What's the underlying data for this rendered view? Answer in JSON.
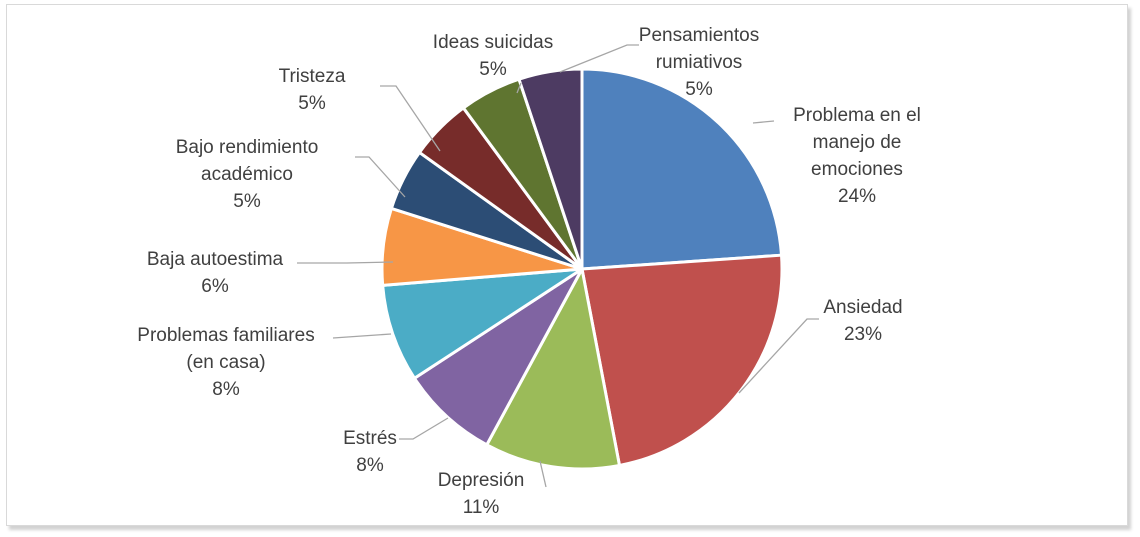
{
  "chart_data": {
    "type": "pie",
    "title": "",
    "start_angle_deg": 0,
    "direction": "clockwise",
    "legend": "none",
    "slices": [
      {
        "label_lines": [
          "Problema en el",
          "manejo de",
          "emociones"
        ],
        "percent_label": "24%",
        "value": 23.9,
        "color": "#4f81bd"
      },
      {
        "label_lines": [
          "Ansiedad"
        ],
        "percent_label": "23%",
        "value": 23.1,
        "color": "#c0504d"
      },
      {
        "label_lines": [
          "Depresión"
        ],
        "percent_label": "11%",
        "value": 10.9,
        "color": "#9bbb59"
      },
      {
        "label_lines": [
          "Estrés"
        ],
        "percent_label": "8%",
        "value": 7.9,
        "color": "#8064a2"
      },
      {
        "label_lines": [
          "Problemas familiares",
          "(en casa)"
        ],
        "percent_label": "8%",
        "value": 7.9,
        "color": "#4bacc6"
      },
      {
        "label_lines": [
          "Baja autoestima"
        ],
        "percent_label": "6%",
        "value": 6.2,
        "color": "#f79646"
      },
      {
        "label_lines": [
          "Bajo rendimiento",
          "académico"
        ],
        "percent_label": "5%",
        "value": 5.0,
        "color": "#2c4d75"
      },
      {
        "label_lines": [
          "Tristeza"
        ],
        "percent_label": "5%",
        "value": 5.0,
        "color": "#772c2a"
      },
      {
        "label_lines": [
          "Ideas suicidas"
        ],
        "percent_label": "5%",
        "value": 5.0,
        "color": "#5f7530"
      },
      {
        "label_lines": [
          "Pensamientos",
          "rumiativos"
        ],
        "percent_label": "5%",
        "value": 5.1,
        "color": "#4d3b62"
      }
    ]
  }
}
